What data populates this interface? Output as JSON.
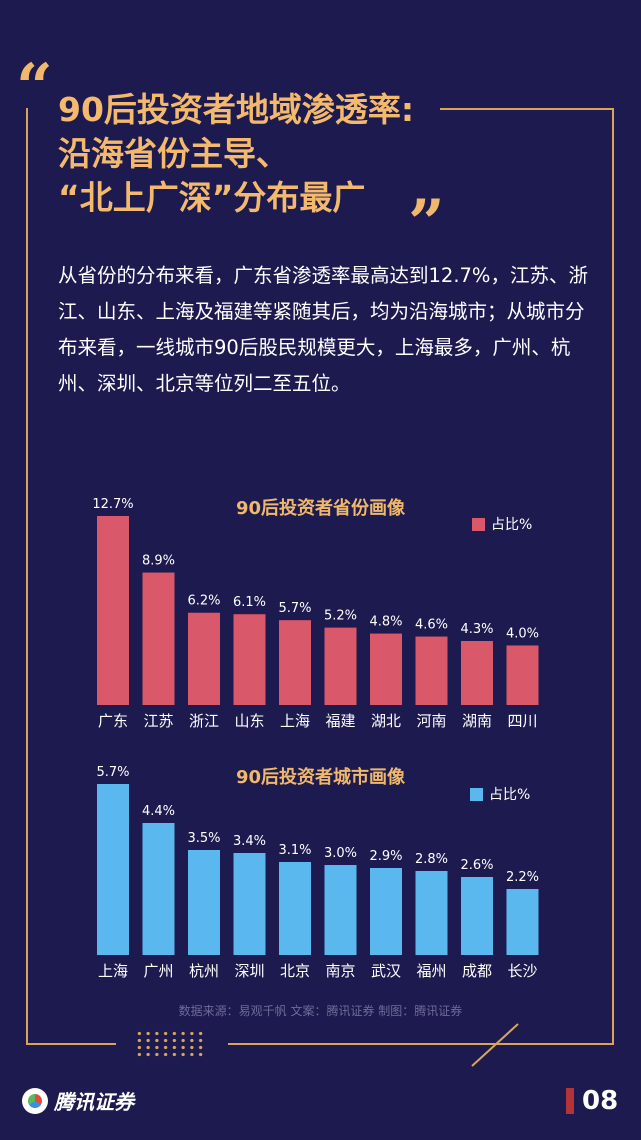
{
  "header": {
    "open_quote": "“",
    "close_quote": "”",
    "title_lines": [
      "90后投资者地域渗透率:",
      "沿海省份主导、",
      "“北上广深”分布最广"
    ]
  },
  "intro": {
    "text": "从省份的分布来看，广东省渗透率最高达到12.7%，江苏、浙江、山东、上海及福建等紧随其后，均为沿海城市；从城市分布来看，一线城市90后股民规模更大，上海最多，广州、杭州、深圳、北京等位列二至五位。"
  },
  "chart_data": [
    {
      "type": "bar",
      "title": "90后投资者省份画像",
      "categories": [
        "广东",
        "江苏",
        "浙江",
        "山东",
        "上海",
        "福建",
        "湖北",
        "河南",
        "湖南",
        "四川"
      ],
      "series": [
        {
          "name": "占比%",
          "values": [
            12.7,
            8.9,
            6.2,
            6.1,
            5.7,
            5.2,
            4.8,
            4.6,
            4.3,
            4.0
          ]
        }
      ],
      "value_labels": [
        "12.7%",
        "8.9%",
        "6.2%",
        "6.1%",
        "5.7%",
        "5.2%",
        "4.8%",
        "4.6%",
        "4.3%",
        "4.0%"
      ],
      "color": "#d9596a",
      "ylim": [
        0,
        12.7
      ],
      "legend_position": "top-right"
    },
    {
      "type": "bar",
      "title": "90后投资者城市画像",
      "categories": [
        "上海",
        "广州",
        "杭州",
        "深圳",
        "北京",
        "南京",
        "武汉",
        "福州",
        "成都",
        "长沙"
      ],
      "series": [
        {
          "name": "占比%",
          "values": [
            5.7,
            4.4,
            3.5,
            3.4,
            3.1,
            3.0,
            2.9,
            2.8,
            2.6,
            2.2
          ]
        }
      ],
      "value_labels": [
        "5.7%",
        "4.4%",
        "3.5%",
        "3.4%",
        "3.1%",
        "3.0%",
        "2.9%",
        "2.8%",
        "2.6%",
        "2.2%"
      ],
      "color": "#5ab8ef",
      "ylim": [
        0,
        5.7
      ],
      "legend_position": "top-right"
    }
  ],
  "footer": {
    "source": "数据来源：易观千帆  文案：腾讯证券  制图：腾讯证券",
    "logo_text": "腾讯证券",
    "page_number": "08"
  },
  "colors": {
    "background": "#1d1a4f",
    "accent": "#f0b86a",
    "frame": "#d9a55a"
  }
}
